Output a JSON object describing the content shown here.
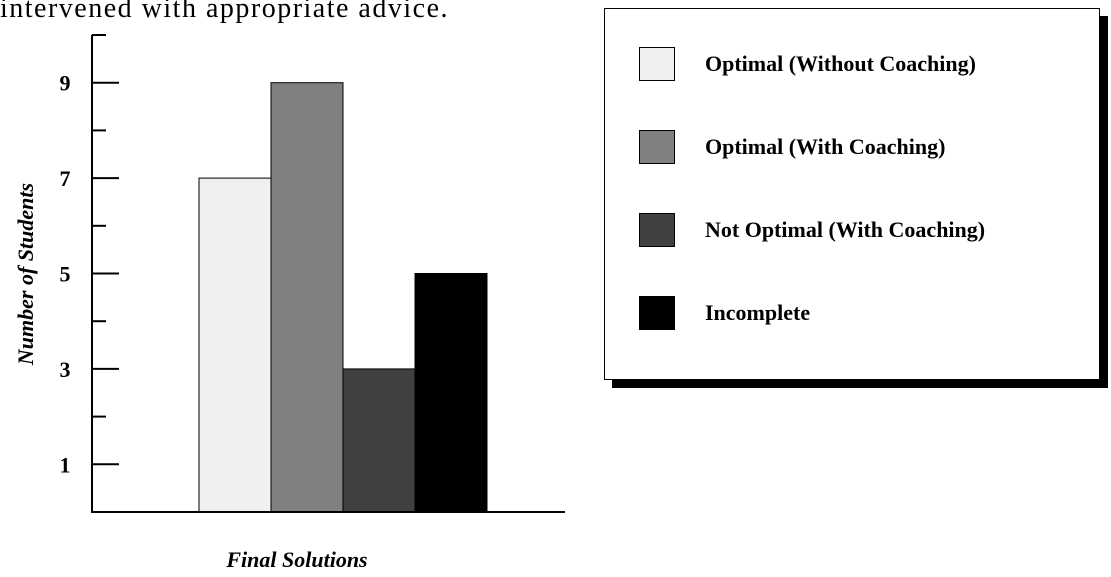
{
  "page_header_fragment": "intervened with appropriate advice.",
  "chart_data": {
    "type": "bar",
    "title": "",
    "xlabel": "Final Solutions",
    "ylabel": "Number of Students",
    "ylim": [
      0,
      10
    ],
    "yticks": [
      1,
      3,
      5,
      7,
      9
    ],
    "ytick_labels": [
      "1",
      "3",
      "5",
      "7",
      "9"
    ],
    "grid": false,
    "legend_position": "top-right",
    "series": [
      {
        "name": "Optimal  (Without Coaching)",
        "value": 7,
        "color": "#f0f0f0"
      },
      {
        "name": "Optimal  (With Coaching)",
        "value": 9,
        "color": "#808080"
      },
      {
        "name": "Not Optimal  (With Coaching)",
        "value": 3,
        "color": "#404040"
      },
      {
        "name": "Incomplete",
        "value": 5,
        "color": "#000000"
      }
    ]
  }
}
